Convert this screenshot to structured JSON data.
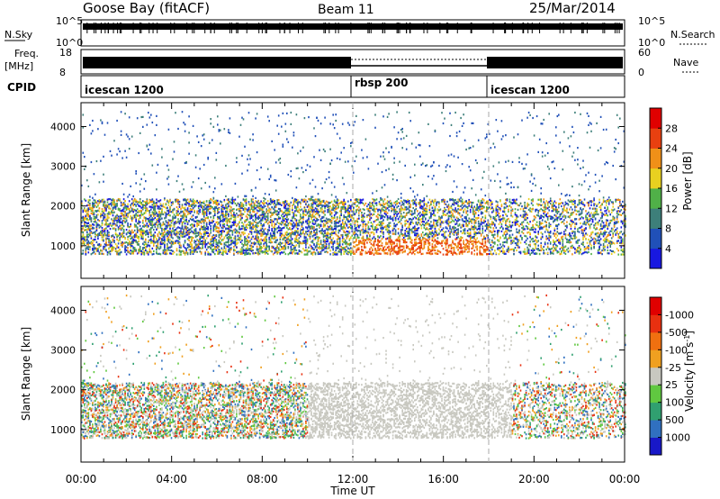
{
  "header": {
    "station": "Goose Bay (fitACF)",
    "beam": "Beam 11",
    "date": "25/Mar/2014"
  },
  "strips": {
    "nsky": {
      "label": "N.Sky",
      "ticks": [
        "10^5",
        "10^0"
      ],
      "right_label": "N.Search",
      "right_ticks": [
        "10^5",
        "10^0"
      ]
    },
    "freq": {
      "label_lines": [
        "Freq.",
        "[MHz]"
      ],
      "ticks": [
        "18",
        "8"
      ],
      "right_label": "Nave",
      "right_ticks": [
        "60",
        "0"
      ]
    },
    "cpid": {
      "label": "CPID",
      "segments": [
        {
          "name": "icescan 1200",
          "start": "00:00",
          "end": "12:00"
        },
        {
          "name": "rbsp 200",
          "start": "12:00",
          "end": "18:00"
        },
        {
          "name": "icescan 1200",
          "start": "18:00",
          "end": "00:00"
        }
      ]
    }
  },
  "chart_data": [
    {
      "type": "heatmap",
      "title": "",
      "ylabel": "Slant Range [km]",
      "xlabel": "",
      "xlim": [
        0,
        24
      ],
      "ylim": [
        180,
        4600
      ],
      "yticks": [
        1000,
        2000,
        3000,
        4000
      ],
      "mode_boundaries_hours": [
        12,
        18
      ],
      "colorbar": {
        "label": "Power [dB]",
        "ticks": [
          "4",
          "8",
          "12",
          "16",
          "20",
          "24",
          "28"
        ],
        "colors": [
          "#1818e0",
          "#2050b8",
          "#3d7f7a",
          "#50b048",
          "#e8d020",
          "#f09018",
          "#e84010",
          "#e00000"
        ]
      }
    },
    {
      "type": "heatmap",
      "title": "",
      "ylabel": "Slant Range [km]",
      "xlabel": "Time UT",
      "xlim": [
        0,
        24
      ],
      "ylim": [
        180,
        4600
      ],
      "yticks": [
        1000,
        2000,
        3000,
        4000
      ],
      "xticks": [
        "00:00",
        "04:00",
        "08:00",
        "12:00",
        "16:00",
        "20:00",
        "00:00"
      ],
      "mode_boundaries_hours": [
        12,
        18
      ],
      "colorbar": {
        "label": "Velocity [m s^-1]",
        "ticks": [
          "1000",
          "500",
          "100",
          "25",
          "-25",
          "-100",
          "-500",
          "-1000"
        ],
        "colors": [
          "#1818c8",
          "#3070c0",
          "#30a070",
          "#60c840",
          "#c8c8c0",
          "#f0a020",
          "#f07010",
          "#e83010",
          "#e00000"
        ]
      }
    }
  ]
}
